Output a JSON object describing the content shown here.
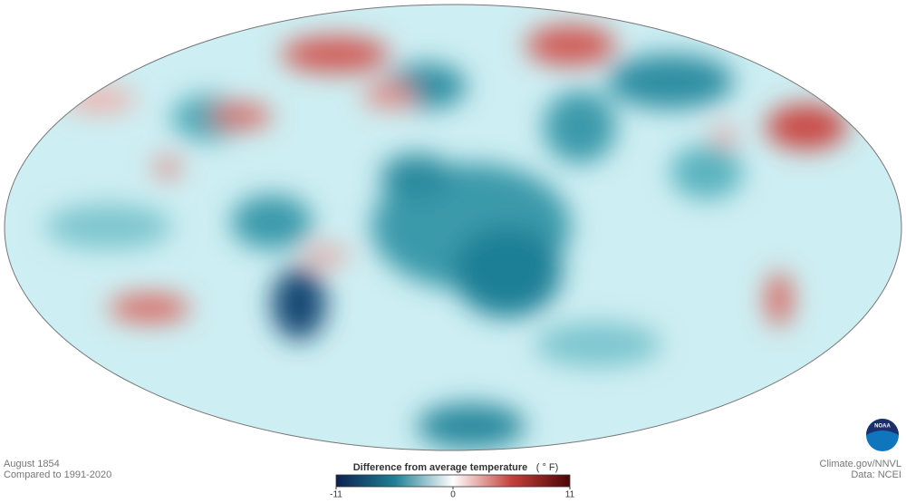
{
  "map": {
    "date": "August 1854",
    "baseline": "Compared to 1991-2020",
    "credit": "Climate.gov/NNVL",
    "source": "Data: NCEI",
    "logo": "NOAA"
  },
  "legend": {
    "title": "Difference from average temperature",
    "unit": "( ° F)",
    "range": [
      -11,
      11
    ],
    "ticks": [
      -11,
      0,
      11
    ]
  }
}
